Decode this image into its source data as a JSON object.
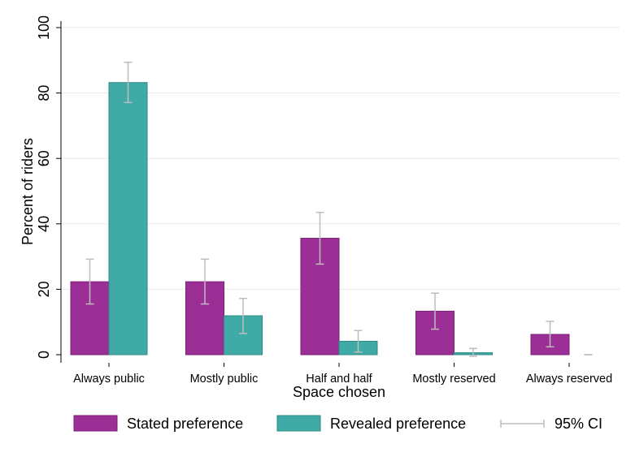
{
  "chart_data": {
    "type": "bar",
    "xlabel": "Space chosen",
    "ylabel": "Percent of riders",
    "ylim": [
      0,
      100
    ],
    "yticks": [
      0,
      20,
      40,
      60,
      80,
      100
    ],
    "grid": true,
    "legend_position": "bottom",
    "categories": [
      "Always public",
      "Mostly public",
      "Half and half",
      "Mostly reserved",
      "Always reserved"
    ],
    "series": [
      {
        "name": "Stated preference",
        "color": "#9b2f96",
        "values": [
          22.3,
          22.3,
          35.6,
          13.3,
          6.2
        ],
        "ci_low": [
          15.5,
          15.5,
          27.7,
          7.8,
          2.4
        ],
        "ci_high": [
          29.2,
          29.2,
          43.5,
          18.8,
          10.2
        ]
      },
      {
        "name": "Revealed preference",
        "color": "#40aba6",
        "values": [
          83.2,
          11.9,
          4.1,
          0.6,
          0
        ],
        "ci_low": [
          77.1,
          6.5,
          0.8,
          -0.5,
          0
        ],
        "ci_high": [
          89.4,
          17.2,
          7.4,
          1.9,
          0
        ]
      }
    ],
    "ci_legend": "95% CI",
    "ci_color": "#bdbdbd"
  }
}
